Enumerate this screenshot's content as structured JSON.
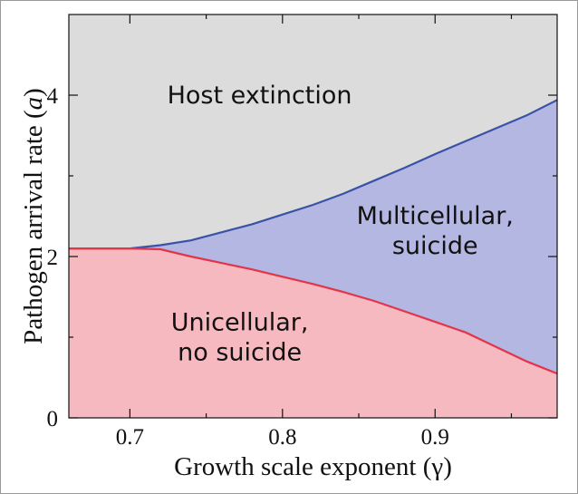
{
  "chart_data": {
    "type": "area",
    "xlabel": "Growth scale exponent (γ)",
    "ylabel_main": "Pathogen arrival rate (",
    "ylabel_var": "a",
    "ylabel_close": ")",
    "xlim": [
      0.66,
      0.98
    ],
    "ylim": [
      0,
      5
    ],
    "xticks": [
      {
        "value": 0.7,
        "label": "0.7"
      },
      {
        "value": 0.8,
        "label": "0.8"
      },
      {
        "value": 0.9,
        "label": "0.9"
      }
    ],
    "yticks": [
      {
        "value": 0,
        "label": "0"
      },
      {
        "value": 2,
        "label": "2"
      },
      {
        "value": 4,
        "label": "4"
      }
    ],
    "grid": false,
    "legend": "none",
    "colors": {
      "host_extinction": "#dcdcdc",
      "multicellular_suicide": "#b3b7e2",
      "unicellular_no_suicide": "#f7b9c0",
      "upper_boundary": "#3a52a6",
      "lower_boundary": "#e3344a"
    },
    "boundaries": {
      "upper": {
        "x": [
          0.66,
          0.7,
          0.72,
          0.74,
          0.76,
          0.78,
          0.8,
          0.82,
          0.84,
          0.86,
          0.88,
          0.9,
          0.92,
          0.94,
          0.96,
          0.98
        ],
        "y": [
          2.1,
          2.1,
          2.14,
          2.2,
          2.3,
          2.4,
          2.52,
          2.64,
          2.78,
          2.94,
          3.1,
          3.27,
          3.43,
          3.59,
          3.75,
          3.94
        ]
      },
      "lower": {
        "x": [
          0.66,
          0.7,
          0.72,
          0.74,
          0.76,
          0.78,
          0.8,
          0.82,
          0.84,
          0.86,
          0.88,
          0.9,
          0.92,
          0.94,
          0.96,
          0.98
        ],
        "y": [
          2.1,
          2.1,
          2.09,
          2.0,
          1.92,
          1.84,
          1.75,
          1.66,
          1.56,
          1.45,
          1.32,
          1.19,
          1.06,
          0.88,
          0.7,
          0.55
        ]
      }
    },
    "regions": [
      {
        "lines": [
          "Host extinction"
        ],
        "x": 0.785,
        "y": 4.0
      },
      {
        "lines": [
          "Multicellular,",
          "suicide"
        ],
        "x": 0.9,
        "y": 2.32
      },
      {
        "lines": [
          "Unicellular,",
          "no suicide"
        ],
        "x": 0.772,
        "y": 1.0
      }
    ]
  }
}
